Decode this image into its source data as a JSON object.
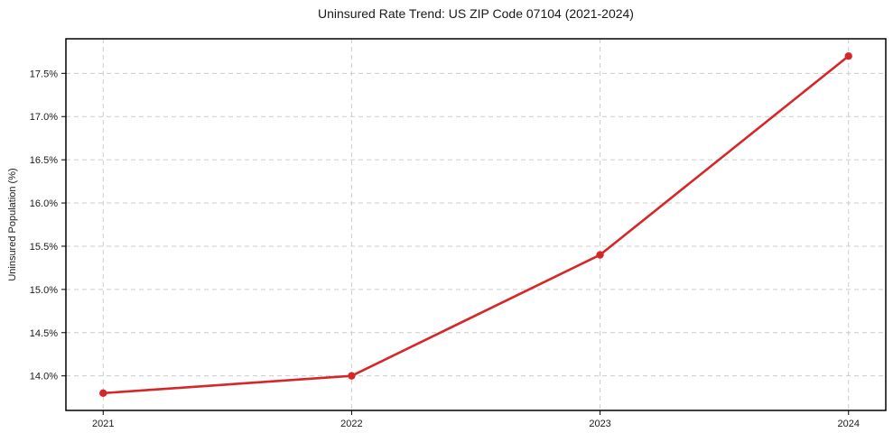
{
  "chart_data": {
    "type": "line",
    "title": "Uninsured Rate Trend: US ZIP Code 07104 (2021-2024)",
    "xlabel": "",
    "ylabel": "Uninsured Population (%)",
    "x": [
      2021,
      2022,
      2023,
      2024
    ],
    "series": [
      {
        "name": "Uninsured Population (%)",
        "values": [
          13.8,
          14.0,
          15.4,
          17.7
        ]
      }
    ],
    "x_ticks": [
      2021,
      2022,
      2023,
      2024
    ],
    "x_tick_labels": [
      "2021",
      "2022",
      "2023",
      "2024"
    ],
    "y_ticks": [
      14.0,
      14.5,
      15.0,
      15.5,
      16.0,
      16.5,
      17.0,
      17.5
    ],
    "y_tick_labels": [
      "14.0%",
      "14.5%",
      "15.0%",
      "15.5%",
      "16.0%",
      "16.5%",
      "17.0%",
      "17.5%"
    ],
    "xlim": [
      2020.85,
      2024.15
    ],
    "ylim": [
      13.6,
      17.9
    ],
    "grid": true,
    "grid_style": "dashed",
    "legend": "none",
    "line_color": "#d62728",
    "marker": "circle",
    "grid_color": "#cccccc",
    "spine_color": "#000000",
    "background_color": "#ffffff",
    "text_color": "#1a1a1a"
  }
}
